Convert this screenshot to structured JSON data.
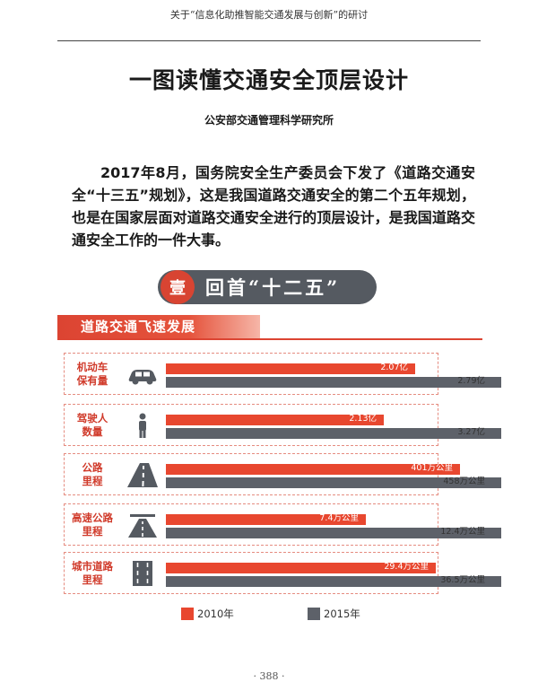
{
  "running_header": "关于“信息化助推智能交通发展与创新”的研讨",
  "title": "一图读懂交通安全顶层设计",
  "author": "公安部交通管理科学研究所",
  "intro": "2017年8月，国务院安全生产委员会下发了《道路交通安全“十三五”规划》，这是我国道路交通安全的第二个五年规划，也是在国家层面对道路交通安全进行的顶层设计，是我国道路交通安全工作的一件大事。",
  "banner": {
    "badge": "壹",
    "text": "回首“十二五”"
  },
  "section_title": "道路交通飞速发展",
  "colors": {
    "red": "#e8472f",
    "gray": "#5d6169",
    "accent": "#d84432"
  },
  "chart_data": {
    "type": "bar",
    "orientation": "horizontal",
    "categories": [
      {
        "lines": [
          "机动车",
          "保有量"
        ],
        "icon": "car-icon"
      },
      {
        "lines": [
          "驾驶人",
          "数量"
        ],
        "icon": "person-icon"
      },
      {
        "lines": [
          "公路",
          "里程"
        ],
        "icon": "road-icon"
      },
      {
        "lines": [
          "高速公路",
          "里程"
        ],
        "icon": "highway-icon"
      },
      {
        "lines": [
          "城市道路",
          "里程"
        ],
        "icon": "city-road-icon"
      }
    ],
    "series": [
      {
        "name": "2010年",
        "color": "#e8472f",
        "values": [
          2.07,
          2.13,
          401,
          7.4,
          29.4
        ],
        "labels": [
          "2.07亿",
          "2.13亿",
          "401万公里",
          "7.4万公里",
          "29.4万公里"
        ],
        "fraction": [
          0.742,
          0.651,
          0.876,
          0.597,
          0.804
        ]
      },
      {
        "name": "2015年",
        "color": "#5d6169",
        "values": [
          2.79,
          3.27,
          458,
          12.4,
          36.5
        ],
        "labels": [
          "2.79亿",
          "3.27亿",
          "458万公里",
          "12.4万公里",
          "36.5万公里"
        ],
        "fraction": [
          1,
          1,
          1,
          1,
          1
        ]
      }
    ]
  },
  "page_number": "· 388 ·"
}
